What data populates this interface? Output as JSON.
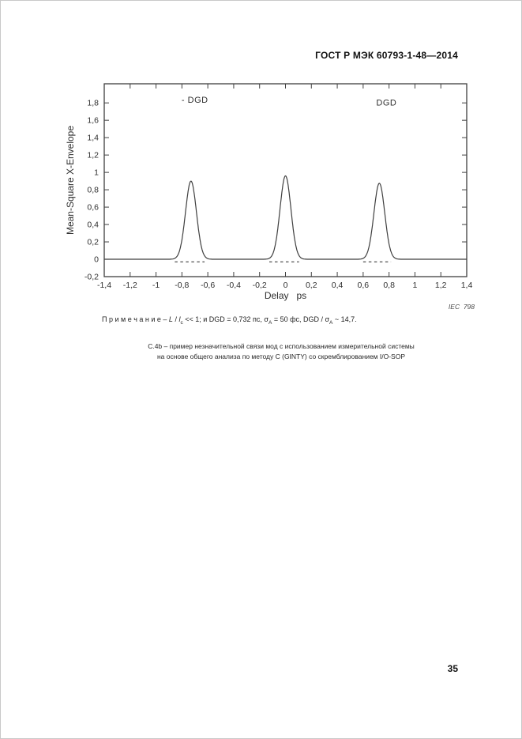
{
  "header": {
    "standard_id": "ГОСТ Р МЭК 60793-1-48—2014"
  },
  "chart_data": {
    "type": "line",
    "title": "",
    "xlabel": "Delay   ps",
    "ylabel": "Mean-Square X-Envelope",
    "xlim": [
      -1.4,
      1.4
    ],
    "ylim": [
      -0.2,
      2.02
    ],
    "grid": false,
    "legend_position": "none",
    "x_tick_values": [
      -1.4,
      -1.2,
      -1,
      -0.8,
      -0.6,
      -0.4,
      -0.2,
      0,
      0.2,
      0.4,
      0.6,
      0.8,
      1,
      1.2,
      1.4
    ],
    "x_tick_labels": [
      "-1,4",
      "-1,2",
      "-1",
      "-0,8",
      "-0,6",
      "-0,4",
      "-0,2",
      "0",
      "0,2",
      "0,4",
      "0,6",
      "0,8",
      "1",
      "1,2",
      "1,4"
    ],
    "y_tick_values": [
      1.8,
      1.6,
      1.4,
      1.2,
      1,
      0.8,
      0.6,
      0.4,
      0.2,
      0,
      -0.2
    ],
    "y_tick_labels": [
      "1,8",
      "1,6",
      "1,4",
      "1,2",
      "1",
      "0,8",
      "0,6",
      "0,4",
      "0,2",
      "0",
      "-0,2"
    ],
    "baseline_level": 0,
    "peaks": [
      {
        "center": -0.73,
        "height": 0.9,
        "sigma": 0.042
      },
      {
        "center": 0.0,
        "height": 0.96,
        "sigma": 0.042
      },
      {
        "center": 0.725,
        "height": 0.875,
        "sigma": 0.042
      }
    ],
    "dashed_baseline_level": -0.03,
    "dashed_baseline_segments": [
      [
        -0.855,
        -0.625
      ],
      [
        -0.125,
        0.105
      ],
      [
        0.6,
        0.815
      ]
    ],
    "annotations": [
      {
        "text": "- DGD",
        "x": -0.7,
        "y": 1.8
      },
      {
        "text": "DGD",
        "x": 0.78,
        "y": 1.77
      }
    ],
    "credit": "IEC  798",
    "line_color": "#3f3f3f"
  },
  "note": {
    "label": "П р и м е ч а н и е",
    "seg_dash": " – ",
    "var_L": "L",
    "seg_slash": " / ",
    "var_l": "l",
    "sub_c": "c",
    "seg_mid": " << 1; и DGD = 0,732 пс, σ",
    "sub_A1": "A",
    "seg_fs": " = 50 фс, DGD / σ",
    "sub_A2": "A",
    "seg_end": " ~ 14,7."
  },
  "caption": {
    "line1": "С.4b – пример незначительной связи мод с использованием измерительной системы",
    "line2": "на основе общего анализа по методу С (GINTY) со скремблированием I/O-SOP"
  },
  "footer": {
    "page_number": "35"
  }
}
